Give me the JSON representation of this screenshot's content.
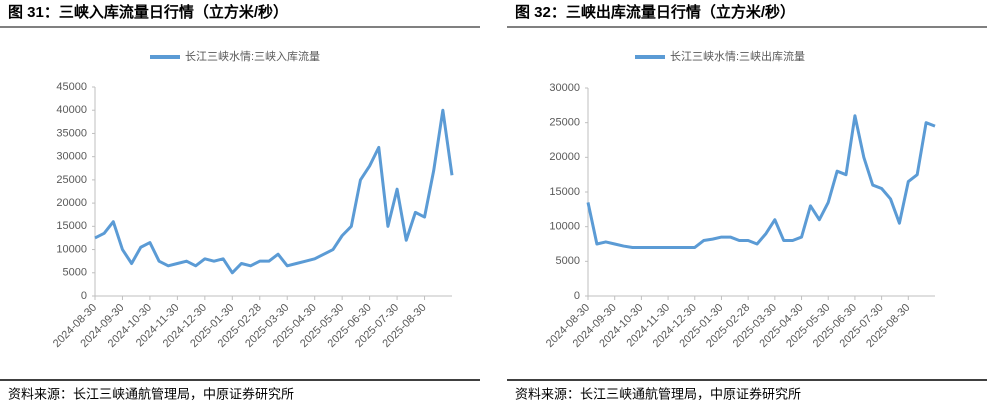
{
  "chart_data": [
    {
      "type": "line",
      "title": "图 31：三峡入库流量日行情（立方米/秒）",
      "source": "资料来源：长江三峡通航管理局，中原证券研究所",
      "categories": [
        "2024-08-30",
        null,
        null,
        "2024-09-30",
        null,
        null,
        "2024-10-30",
        null,
        null,
        "2024-11-30",
        null,
        null,
        "2024-12-30",
        null,
        null,
        "2025-01-30",
        null,
        null,
        "2025-02-28",
        null,
        null,
        "2025-03-30",
        null,
        null,
        "2025-04-30",
        null,
        null,
        "2025-05-30",
        null,
        null,
        "2025-06-30",
        null,
        null,
        "2025-07-30",
        null,
        null,
        "2025-08-30",
        null,
        null,
        null
      ],
      "series": [
        {
          "name": "长江三峡水情:三峡入库流量",
          "color": "#5b9bd5",
          "values": [
            12500,
            13500,
            16000,
            10000,
            7000,
            10500,
            11500,
            7500,
            6500,
            7000,
            7500,
            6500,
            8000,
            7500,
            8000,
            5000,
            7000,
            6500,
            7500,
            7500,
            9000,
            6500,
            7000,
            7500,
            8000,
            9000,
            10000,
            13000,
            15000,
            25000,
            28000,
            32000,
            15000,
            23000,
            12000,
            18000,
            17000,
            27000,
            40000,
            26000
          ]
        }
      ],
      "ylim": [
        0,
        45000
      ],
      "yticks": [
        0,
        5000,
        10000,
        15000,
        20000,
        25000,
        30000,
        35000,
        40000,
        45000
      ]
    },
    {
      "type": "line",
      "title": "图 32：三峡出库流量日行情（立方米/秒）",
      "source": "资料来源：长江三峡通航管理局，中原证券研究所",
      "categories": [
        "2024-08-30",
        null,
        null,
        "2024-09-30",
        null,
        null,
        "2024-10-30",
        null,
        null,
        "2024-11-30",
        null,
        null,
        "2024-12-30",
        null,
        null,
        "2025-01-30",
        null,
        null,
        "2025-02-28",
        null,
        null,
        "2025-03-30",
        null,
        null,
        "2025-04-30",
        null,
        null,
        "2025-05-30",
        null,
        null,
        "2025-06-30",
        null,
        null,
        "2025-07-30",
        null,
        null,
        "2025-08-30",
        null,
        null,
        null
      ],
      "series": [
        {
          "name": "长江三峡水情:三峡出库流量",
          "color": "#5b9bd5",
          "values": [
            13500,
            7500,
            7800,
            7500,
            7200,
            7000,
            7000,
            7000,
            7000,
            7000,
            7000,
            7000,
            7000,
            8000,
            8200,
            8500,
            8500,
            8000,
            8000,
            7500,
            9000,
            11000,
            8000,
            8000,
            8500,
            13000,
            11000,
            13500,
            18000,
            17500,
            26000,
            20000,
            16000,
            15500,
            14000,
            10500,
            16500,
            17500,
            25000,
            24500
          ]
        }
      ],
      "ylim": [
        0,
        30000
      ],
      "yticks": [
        0,
        5000,
        10000,
        15000,
        20000,
        25000,
        30000
      ]
    }
  ]
}
